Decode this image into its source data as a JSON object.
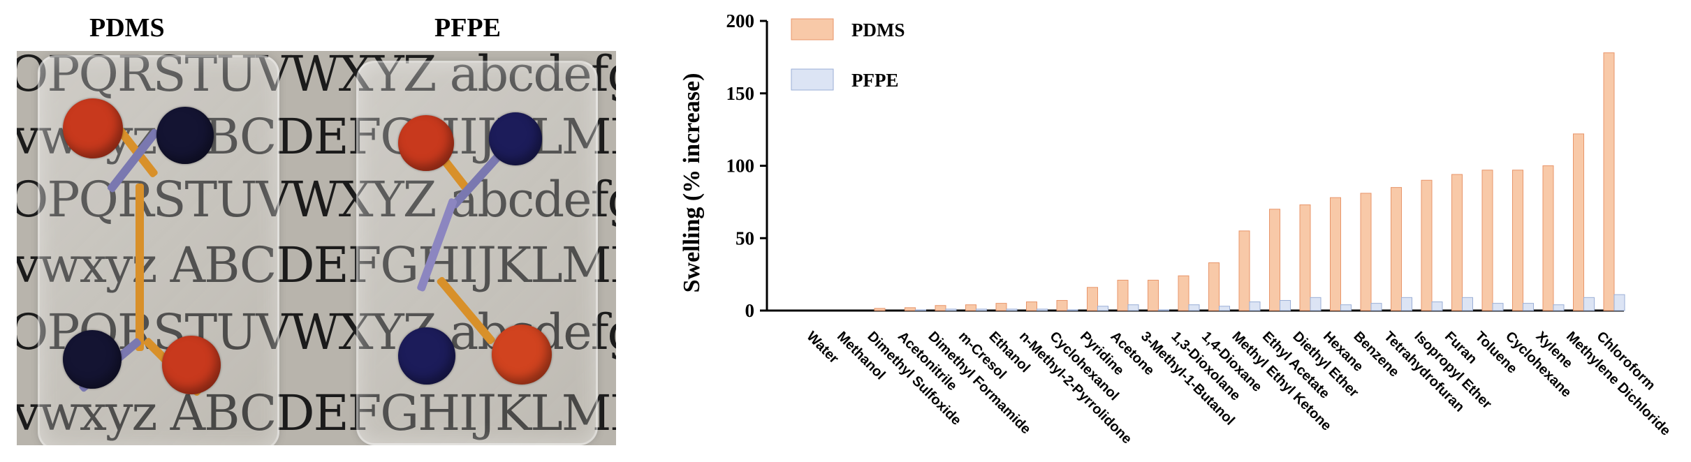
{
  "photo": {
    "labels": [
      "PDMS",
      "PFPE"
    ],
    "text_rows": [
      "OPQRSTUVWXYZ abcdefghijkl",
      "vwxyz ABCDEFGHIJKLMNOP",
      "OPQRSTUVWXYZ abcdefghijkl",
      "vwxyz ABCDEFGHIJKLMNOP",
      "OPQRSTUVWXYZ abcdefghijkl",
      "vwxyz ABCDEFGHIJKLMNOP"
    ],
    "colors": {
      "red_dye": "#c8391d",
      "blue_dye": "#141432",
      "orange_channel": "#d8902a",
      "purple_channel": "#7a78b0"
    }
  },
  "chart_data": {
    "type": "bar",
    "title": "",
    "xlabel": "",
    "ylabel": "Swelling (% increase)",
    "ylim": [
      0,
      200
    ],
    "yticks": [
      0,
      50,
      100,
      150,
      200
    ],
    "grid": false,
    "legend_position": "top-left",
    "categories": [
      "Water",
      "Methanol",
      "Dimethyl Sulfoxide",
      "Acetonitrile",
      "Dimethyl Formamide",
      "m-Cresol",
      "Ethanol",
      "n-Methyl-2-Pyrrolidone",
      "Cyclohexanol",
      "Pyridine",
      "Acetone",
      "3-Methyl-1-Butanol",
      "1,3-Dioxolane",
      "1,4-Dioxane",
      "Methyl Ethyl Ketone",
      "Ethyl Acetate",
      "Diethyl Ether",
      "Hexane",
      "Benzene",
      "Tetrahydrofuran",
      "Isopropyl Ether",
      "Furan",
      "Toluene",
      "Cyclohexane",
      "Xylene",
      "Methylene Dichloride",
      "Chloroform"
    ],
    "series": [
      {
        "name": "PDMS",
        "color": "#f8c9a8",
        "edge": "#e8956a",
        "values": [
          0,
          0,
          1.5,
          2,
          3.5,
          4,
          5,
          6,
          7,
          16,
          21,
          21,
          24,
          33,
          55,
          70,
          73,
          78,
          81,
          85,
          90,
          94,
          97,
          97,
          100,
          122,
          178
        ]
      },
      {
        "name": "PFPE",
        "color": "#dce4f4",
        "edge": "#9aaed6",
        "values": [
          0,
          0,
          0,
          0.5,
          1,
          1,
          1,
          1,
          0.5,
          3,
          4,
          0.5,
          4,
          3,
          6,
          7,
          9,
          4,
          5,
          9,
          6,
          9,
          5,
          5,
          4,
          9,
          11
        ]
      }
    ]
  }
}
